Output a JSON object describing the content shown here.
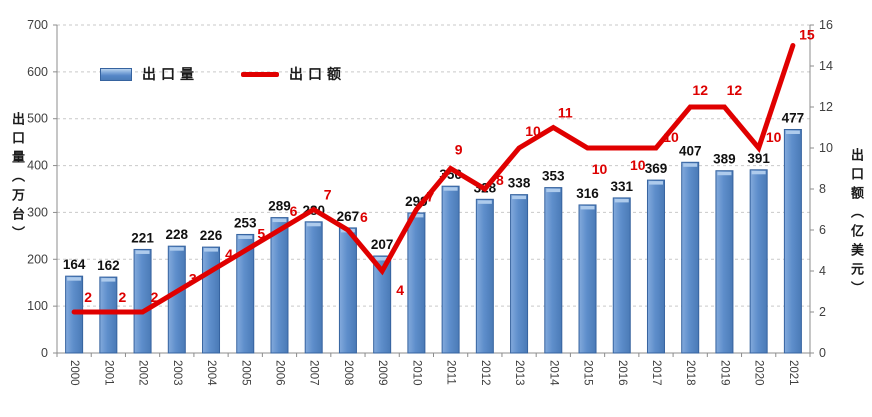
{
  "chart_data": {
    "type": "combo-bar-line",
    "categories": [
      "2000",
      "2001",
      "2002",
      "2003",
      "2004",
      "2005",
      "2006",
      "2007",
      "2008",
      "2009",
      "2010",
      "2011",
      "2012",
      "2013",
      "2014",
      "2015",
      "2016",
      "2017",
      "2018",
      "2019",
      "2020",
      "2021"
    ],
    "series": [
      {
        "name": "出口量",
        "type": "bar",
        "axis": "left",
        "color": "#5586c7",
        "values": [
          164,
          162,
          221,
          228,
          226,
          253,
          289,
          280,
          267,
          207,
          299,
          356,
          328,
          338,
          353,
          316,
          331,
          369,
          407,
          389,
          391,
          477
        ]
      },
      {
        "name": "出口额",
        "type": "line",
        "axis": "right",
        "color": "#e00000",
        "values": [
          2,
          2,
          2,
          3,
          4,
          5,
          6,
          7,
          6,
          4,
          7,
          9,
          8,
          10,
          11,
          10,
          10,
          10,
          12,
          12,
          10,
          15
        ]
      }
    ],
    "left_axis": {
      "title": "出口量（万台）",
      "min": 0,
      "max": 700,
      "step": 100,
      "ticks": [
        "0",
        "100",
        "200",
        "300",
        "400",
        "500",
        "600",
        "700"
      ]
    },
    "right_axis": {
      "title": "出口额（亿美元）",
      "min": 0,
      "max": 16,
      "step": 2,
      "ticks": [
        "0",
        "2",
        "4",
        "6",
        "8",
        "10",
        "12",
        "14",
        "16"
      ]
    },
    "legend": {
      "position": "top-left-inside",
      "entries": [
        "出口量",
        "出口额"
      ]
    },
    "grid": "horizontal-dashed",
    "data_labels": "on"
  },
  "colors": {
    "bar_body": "#5586c7",
    "bar_highlight": "#aecbec",
    "bar_border": "#36639f",
    "line": "#e00000",
    "line_label": "#dd0000",
    "bar_label": "#111111",
    "tick_label": "#3f3f3f",
    "gridline": "#c9c9c9",
    "axis_line": "#8c8c8c"
  }
}
